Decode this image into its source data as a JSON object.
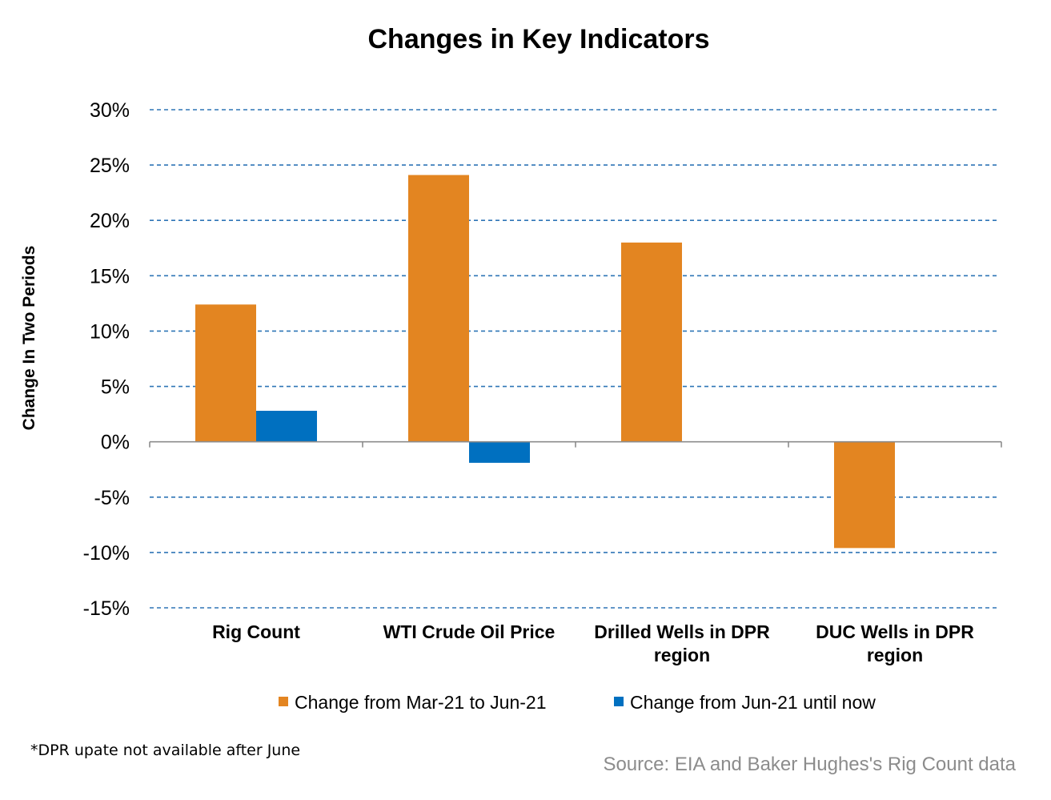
{
  "chart_data": {
    "type": "bar",
    "title": "Changes in Key Indicators",
    "ylabel": "Change In Two Periods",
    "xlabel": "",
    "ylim": [
      -15,
      30
    ],
    "yticks": [
      30,
      25,
      20,
      15,
      10,
      5,
      0,
      -5,
      -10,
      -15
    ],
    "ytick_labels": [
      "30%",
      "25%",
      "20%",
      "15%",
      "10%",
      "5%",
      "0%",
      "-5%",
      "-10%",
      "-15%"
    ],
    "grid": true,
    "legend_position": "bottom",
    "categories": [
      [
        "Rig Count"
      ],
      [
        "WTI Crude Oil Price"
      ],
      [
        "Drilled Wells in DPR",
        "region"
      ],
      [
        "DUC Wells in DPR",
        "region"
      ]
    ],
    "series": [
      {
        "name": "Change from Mar-21 to Jun-21",
        "color": "#E38521",
        "values": [
          12.4,
          24.1,
          18.0,
          -9.6
        ]
      },
      {
        "name": "Change from Jun-21 until now",
        "color": "#0070C0",
        "values": [
          2.8,
          -1.9,
          null,
          null
        ]
      }
    ]
  },
  "footnote": "*DPR upate not available after June",
  "source": "Source: EIA and Baker Hughes's Rig Count data"
}
